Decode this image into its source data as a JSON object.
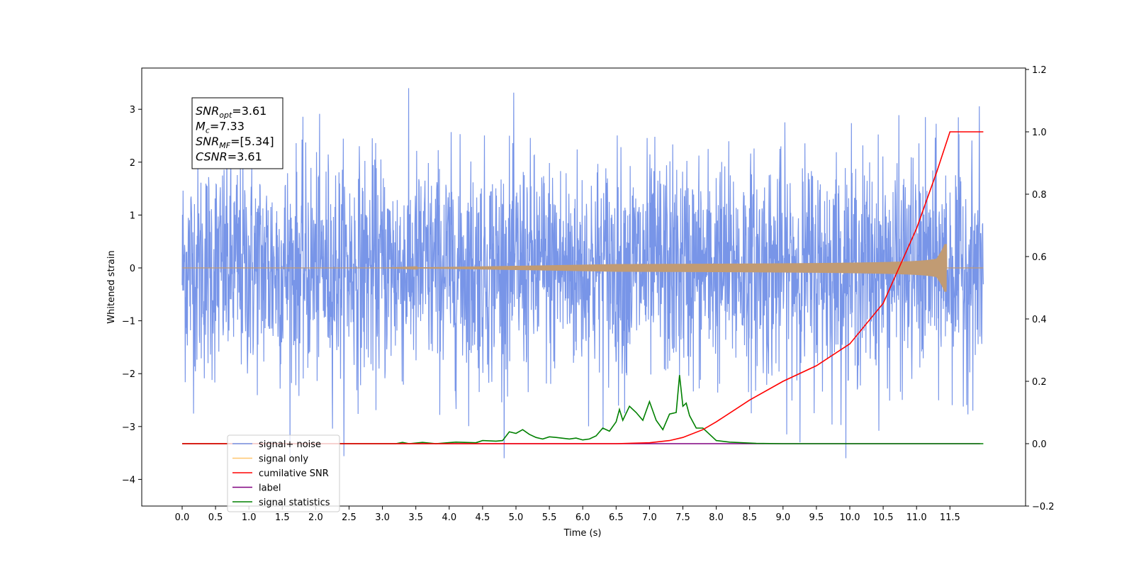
{
  "chart_data": {
    "type": "line",
    "xlabel": "Time (s)",
    "ylabel": "Whitened strain",
    "xlim": [
      -0.6,
      12.6
    ],
    "ylim": [
      -4.5,
      3.8
    ],
    "y2lim": [
      -0.2,
      1.2
    ],
    "x_ticks": [
      "0.0",
      "0.5",
      "1.0",
      "1.5",
      "2.0",
      "2.5",
      "3.0",
      "3.5",
      "4.0",
      "4.5",
      "5.0",
      "5.5",
      "6.0",
      "6.5",
      "7.0",
      "7.5",
      "8.0",
      "8.5",
      "9.0",
      "9.5",
      "10.0",
      "10.5",
      "11.0",
      "11.5"
    ],
    "y_ticks": [
      "3",
      "2",
      "1",
      "0",
      "−1",
      "−2",
      "−3",
      "−4"
    ],
    "y2_ticks": [
      "1.2",
      "1.0",
      "0.8",
      "0.6",
      "0.4",
      "0.2",
      "0.0",
      "−0.2"
    ],
    "annotation": [
      {
        "base": "SNR",
        "sub": "opt",
        "value": "=3.61"
      },
      {
        "base": "M",
        "sub": "c",
        "value": "=7.33"
      },
      {
        "base": "SNR",
        "sub": "MF",
        "value": "=[5.34]"
      },
      {
        "base": "CSNR",
        "sub": "",
        "value": "=3.61"
      }
    ],
    "legend_position": "lower-left",
    "series": [
      {
        "name": "signal+ noise",
        "color": "#7895e8",
        "axis": "left",
        "description_range": [
          -3.6,
          3.4
        ],
        "x_range": [
          0.0,
          12.0
        ]
      },
      {
        "name": "signal only",
        "color": "#ffc66e",
        "axis": "left",
        "peak_amplitude": 0.45,
        "peak_time": 11.45
      },
      {
        "name": "cumilative SNR",
        "color": "#ff0000",
        "axis": "right",
        "points": [
          [
            0.0,
            0.0
          ],
          [
            6.5,
            0.0
          ],
          [
            7.0,
            0.003
          ],
          [
            7.3,
            0.01
          ],
          [
            7.5,
            0.02
          ],
          [
            7.8,
            0.045
          ],
          [
            8.0,
            0.07
          ],
          [
            8.5,
            0.14
          ],
          [
            9.0,
            0.2
          ],
          [
            9.5,
            0.25
          ],
          [
            10.0,
            0.32
          ],
          [
            10.5,
            0.45
          ],
          [
            11.0,
            0.69
          ],
          [
            11.3,
            0.87
          ],
          [
            11.5,
            1.0
          ],
          [
            12.0,
            1.0
          ]
        ]
      },
      {
        "name": "label",
        "color": "#800080",
        "axis": "right",
        "points": [
          [
            0.0,
            0.0
          ],
          [
            11.95,
            0.0
          ]
        ]
      },
      {
        "name": "signal statistics",
        "color": "#008000",
        "axis": "right",
        "points": [
          [
            0.0,
            0.0
          ],
          [
            3.2,
            0.0
          ],
          [
            3.3,
            0.004
          ],
          [
            3.4,
            0.0
          ],
          [
            3.6,
            0.004
          ],
          [
            3.8,
            0.0
          ],
          [
            4.1,
            0.005
          ],
          [
            4.4,
            0.003
          ],
          [
            4.5,
            0.01
          ],
          [
            4.7,
            0.008
          ],
          [
            4.8,
            0.01
          ],
          [
            4.9,
            0.038
          ],
          [
            5.0,
            0.033
          ],
          [
            5.1,
            0.045
          ],
          [
            5.2,
            0.03
          ],
          [
            5.3,
            0.02
          ],
          [
            5.4,
            0.015
          ],
          [
            5.5,
            0.022
          ],
          [
            5.6,
            0.02
          ],
          [
            5.8,
            0.015
          ],
          [
            5.9,
            0.018
          ],
          [
            6.0,
            0.012
          ],
          [
            6.1,
            0.015
          ],
          [
            6.2,
            0.025
          ],
          [
            6.3,
            0.05
          ],
          [
            6.4,
            0.04
          ],
          [
            6.5,
            0.07
          ],
          [
            6.55,
            0.11
          ],
          [
            6.6,
            0.075
          ],
          [
            6.7,
            0.12
          ],
          [
            6.8,
            0.1
          ],
          [
            6.9,
            0.075
          ],
          [
            7.0,
            0.135
          ],
          [
            7.1,
            0.075
          ],
          [
            7.2,
            0.045
          ],
          [
            7.3,
            0.095
          ],
          [
            7.4,
            0.1
          ],
          [
            7.45,
            0.22
          ],
          [
            7.5,
            0.12
          ],
          [
            7.55,
            0.13
          ],
          [
            7.6,
            0.09
          ],
          [
            7.7,
            0.05
          ],
          [
            7.8,
            0.05
          ],
          [
            7.9,
            0.03
          ],
          [
            8.0,
            0.01
          ],
          [
            8.2,
            0.005
          ],
          [
            8.4,
            0.003
          ],
          [
            8.6,
            0.001
          ],
          [
            9.0,
            0.0
          ],
          [
            12.0,
            0.0
          ]
        ]
      }
    ]
  }
}
